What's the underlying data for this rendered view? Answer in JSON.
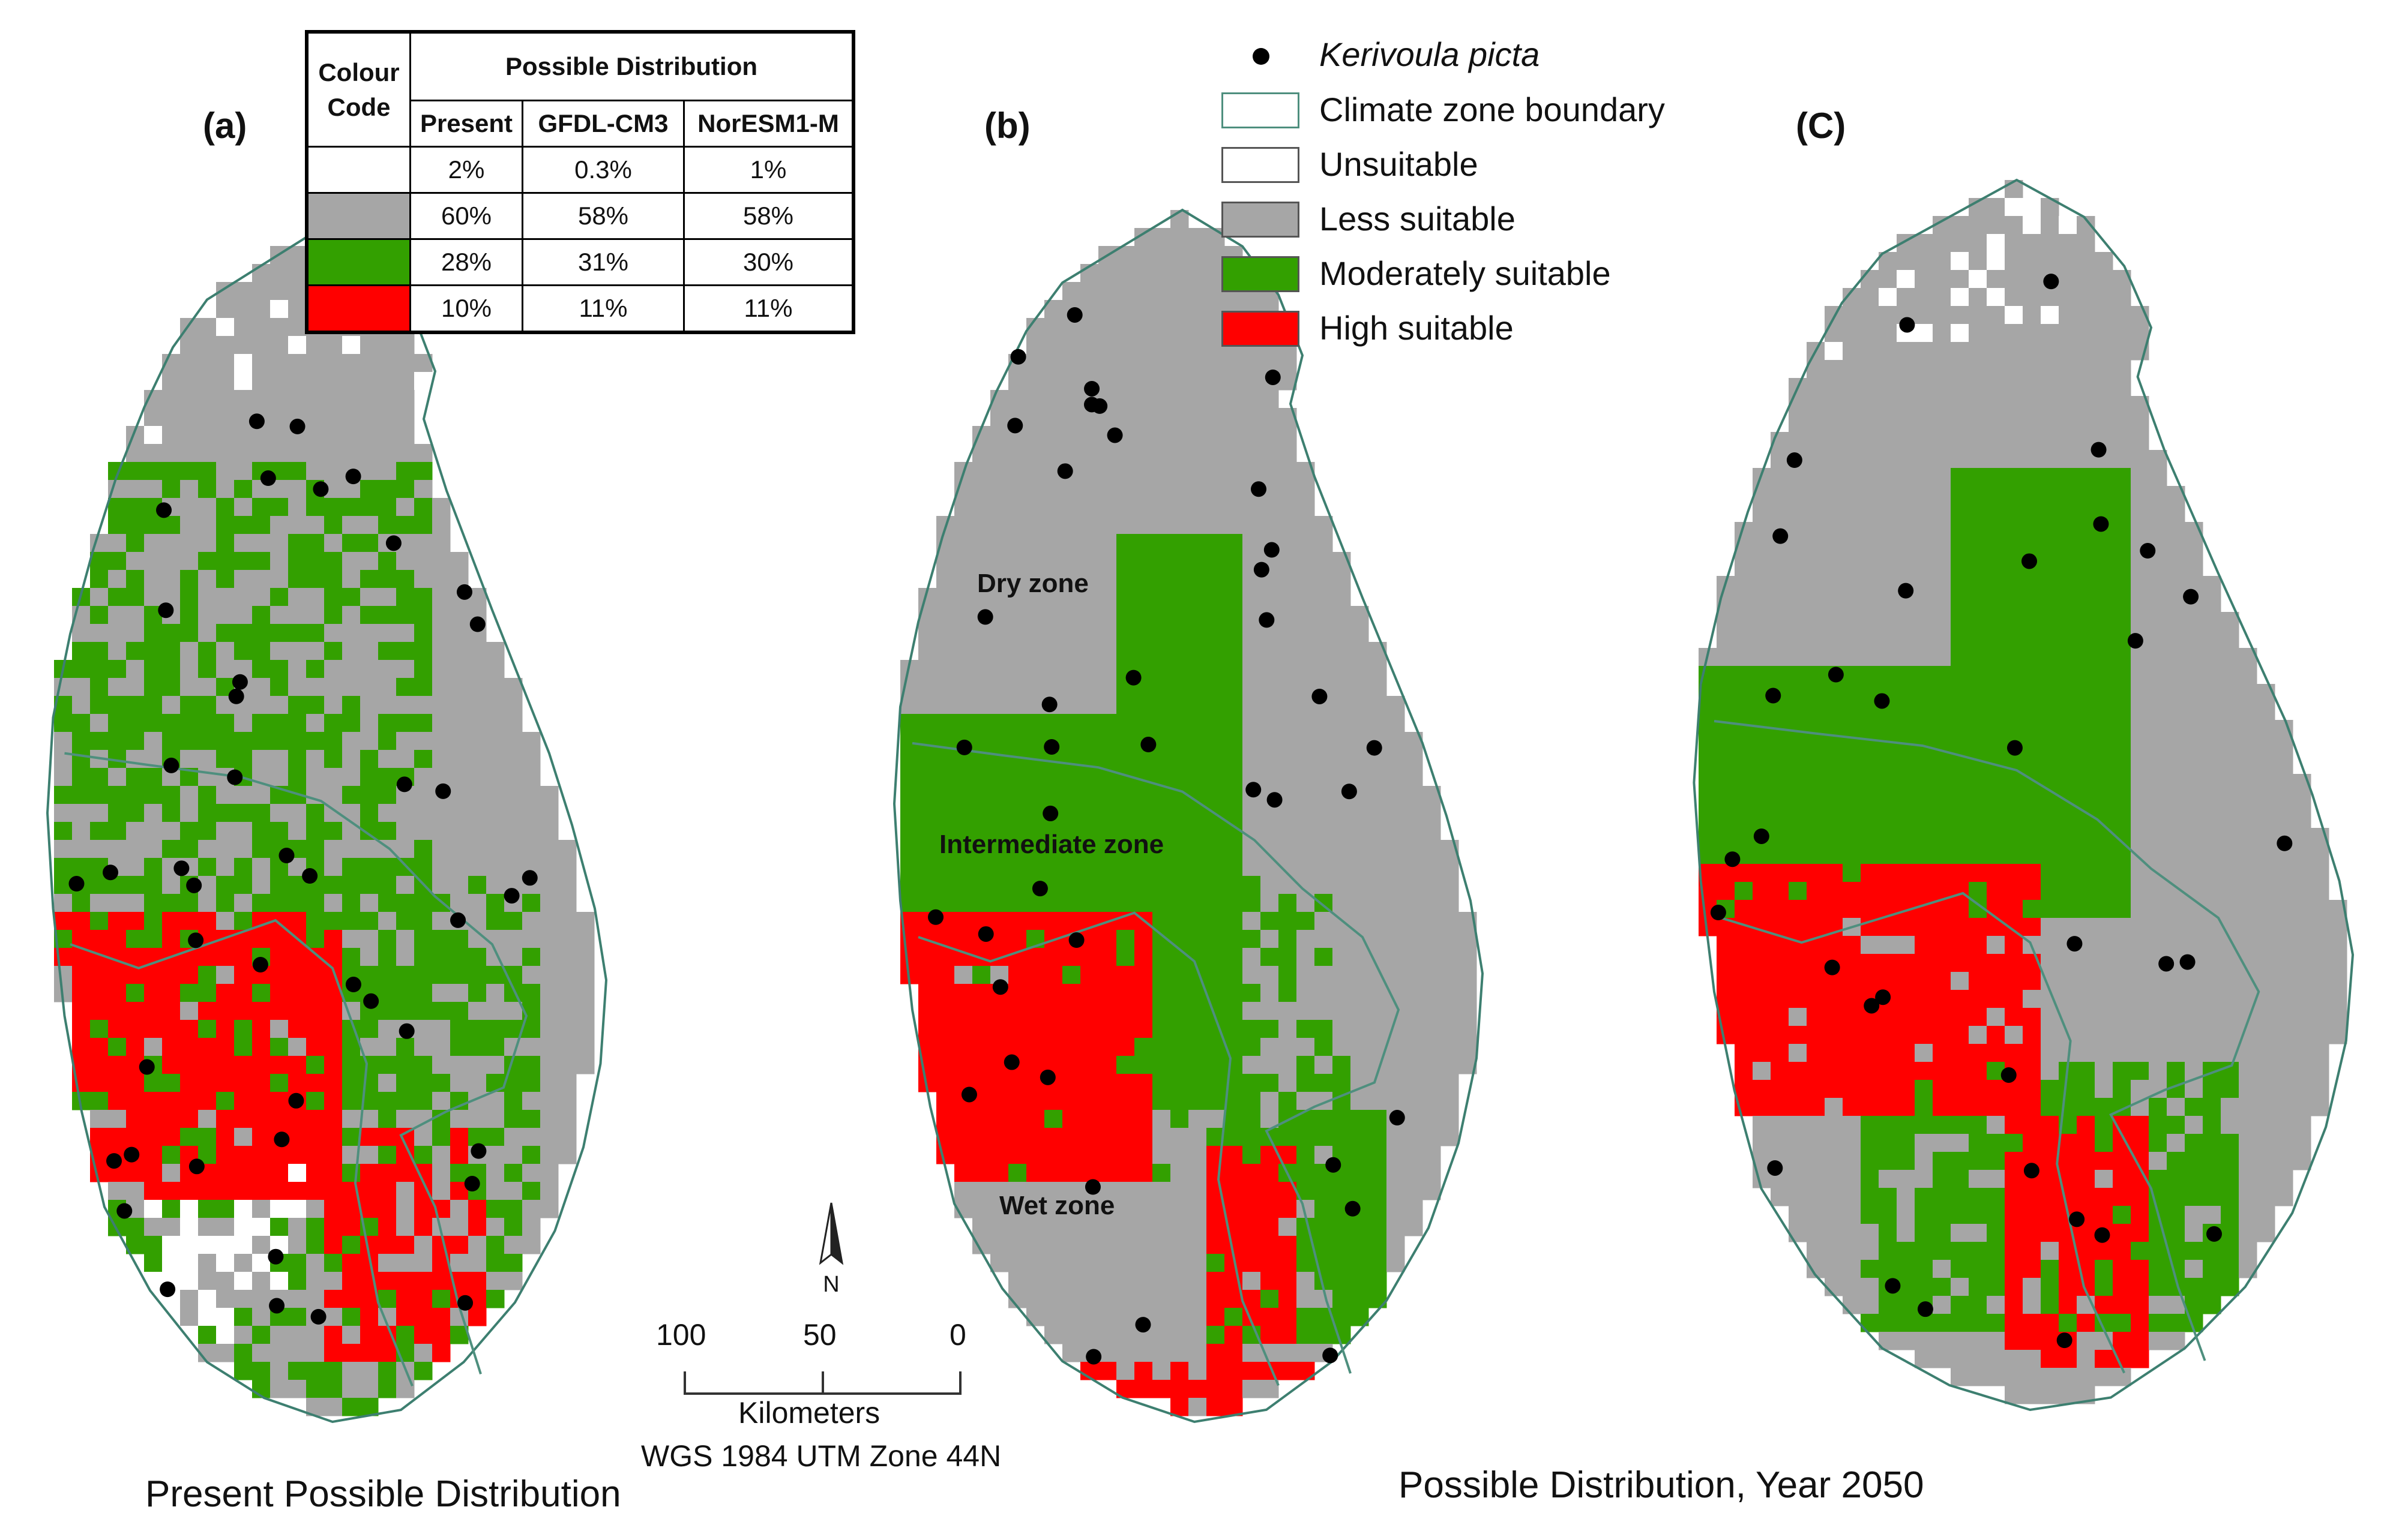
{
  "panels": [
    {
      "label": "(a)"
    },
    {
      "label": "(b)"
    },
    {
      "label": "(C)"
    }
  ],
  "colour_table": {
    "header_colour": "Colour Code",
    "header_group": "Possible Distribution",
    "columns": [
      "Present",
      "GFDL-CM3",
      "NorESM1-M"
    ],
    "rows": [
      {
        "color": "#ffffff",
        "values": [
          "2%",
          "0.3%",
          "1%"
        ]
      },
      {
        "color": "#a6a6a6",
        "values": [
          "60%",
          "58%",
          "58%"
        ]
      },
      {
        "color": "#33a000",
        "values": [
          "28%",
          "31%",
          "30%"
        ]
      },
      {
        "color": "#ff0000",
        "values": [
          "10%",
          "11%",
          "11%"
        ]
      }
    ]
  },
  "legend": {
    "items": [
      {
        "kind": "point",
        "label": "Kerivoula picta",
        "color": "#000000"
      },
      {
        "kind": "outline",
        "label": "Climate zone boundary",
        "color": "#4e8f7e"
      },
      {
        "kind": "fill",
        "label": "Unsuitable",
        "color": "#ffffff"
      },
      {
        "kind": "fill",
        "label": "Less suitable",
        "color": "#a6a6a6"
      },
      {
        "kind": "fill",
        "label": "Moderately suitable",
        "color": "#33a000"
      },
      {
        "kind": "fill",
        "label": "High suitable",
        "color": "#ff0000"
      }
    ]
  },
  "zones": {
    "dry": "Dry zone",
    "intermediate": "Intermediate zone",
    "wet": "Wet zone"
  },
  "north_arrow": {
    "label": "N"
  },
  "scale_bar": {
    "ticks": [
      "100",
      "50",
      "0"
    ],
    "unit": "Kilometers",
    "projection": "WGS 1984 UTM Zone 44N"
  },
  "captions": {
    "left": "Present Possible Distribution",
    "right": "Possible Distribution, Year 2050"
  },
  "colors": {
    "coast": "#3d7f70",
    "zone_boundary": "#4e8f7e",
    "less": "#a6a6a6",
    "moderate": "#33a000",
    "high": "#ff0000",
    "points": "#000000"
  }
}
